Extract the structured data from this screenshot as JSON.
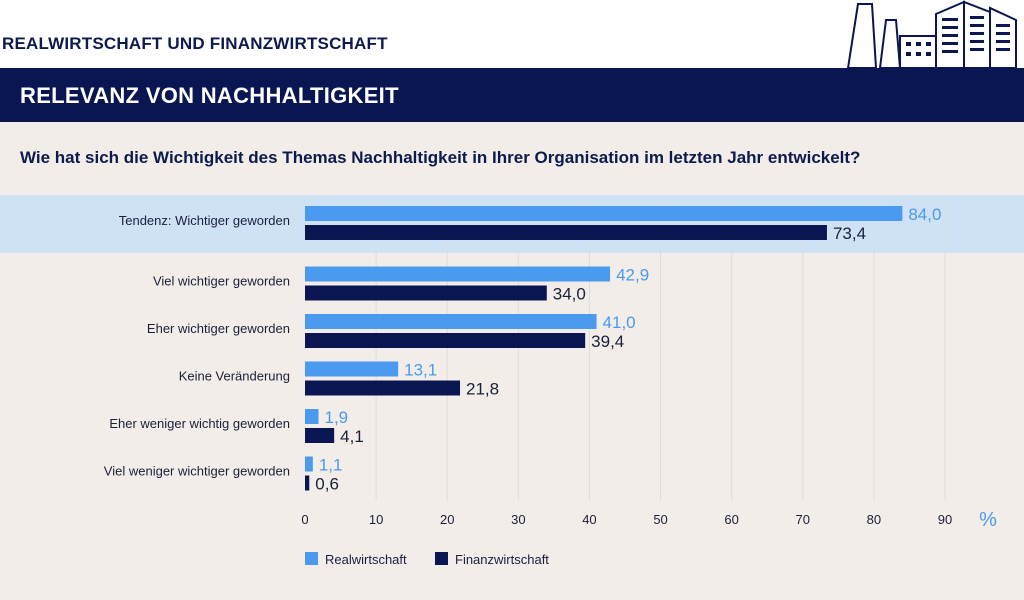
{
  "header": {
    "top_title": "REALWIRTSCHAFT UND FINANZWIRTSCHAFT",
    "banner_title": "RELEVANZ VON NACHHALTIGKEIT",
    "question": "Wie hat sich die Wichtigkeit des Themas Nachhaltigkeit in Ihrer Organisation im letzten Jahr entwickelt?"
  },
  "colors": {
    "navy": "#0a1651",
    "light_blue": "#4a9af0",
    "highlight": "#cfe2f5",
    "background": "#f2ede8"
  },
  "chart_data": {
    "type": "bar",
    "orientation": "horizontal",
    "categories": [
      "Tendenz: Wichtiger geworden",
      "Viel wichtiger geworden",
      "Eher wichtiger geworden",
      "Keine Veränderung",
      "Eher weniger wichtig geworden",
      "Viel weniger wichtiger geworden"
    ],
    "series": [
      {
        "name": "Realwirtschaft",
        "color": "#4a9af0",
        "values": [
          84.0,
          42.9,
          41.0,
          13.1,
          1.9,
          1.1
        ],
        "labels": [
          "84,0",
          "42,9",
          "41,0",
          "13,1",
          "1,9",
          "1,1"
        ]
      },
      {
        "name": "Finanzwirtschaft",
        "color": "#0a1651",
        "values": [
          73.4,
          34.0,
          39.4,
          21.8,
          4.1,
          0.6
        ],
        "labels": [
          "73,4",
          "34,0",
          "39,4",
          "21,8",
          "4,1",
          "0,6"
        ]
      }
    ],
    "xlim": [
      0,
      90
    ],
    "xticks": [
      0,
      10,
      20,
      30,
      40,
      50,
      60,
      70,
      80,
      90
    ],
    "x_unit": "%",
    "highlighted_category": "Tendenz: Wichtiger geworden",
    "grid": true,
    "legend_position": "bottom-left"
  }
}
